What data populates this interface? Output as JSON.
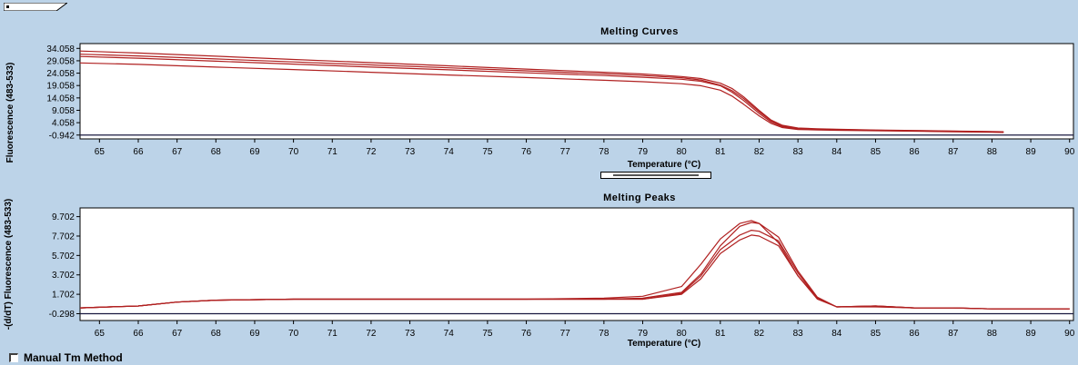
{
  "chart_data": [
    {
      "type": "line",
      "title": "Melting Curves",
      "xlabel": "Temperature (°C)",
      "ylabel": "Fluorescence (483-533)",
      "xlim": [
        64.5,
        90.1
      ],
      "ylim": [
        -2.5,
        36
      ],
      "xticks": [
        "65",
        "66",
        "67",
        "68",
        "69",
        "70",
        "71",
        "72",
        "73",
        "74",
        "75",
        "76",
        "77",
        "78",
        "79",
        "80",
        "81",
        "82",
        "83",
        "84",
        "85",
        "86",
        "87",
        "88",
        "89",
        "90"
      ],
      "yticks": [
        "34.058",
        "29.058",
        "24.058",
        "19.058",
        "14.058",
        "9.058",
        "4.058",
        "-0.942"
      ],
      "ytick_values": [
        34.058,
        29.058,
        24.058,
        19.058,
        14.058,
        9.058,
        4.058,
        -0.942
      ],
      "baseline": -0.942,
      "line_color": "#b02020",
      "baseline_color": "#1a1a40",
      "series": [
        {
          "x": [
            64.5,
            66,
            68,
            70,
            72,
            74,
            76,
            78,
            79,
            80,
            80.5,
            81,
            81.3,
            81.6,
            82,
            82.3,
            82.6,
            83,
            83.5,
            84,
            85,
            86,
            87,
            88,
            88.3
          ],
          "y": [
            33.0,
            32.2,
            30.9,
            29.6,
            28.3,
            27.0,
            25.7,
            24.4,
            23.7,
            22.7,
            21.9,
            20.0,
            17.9,
            14.5,
            9.0,
            5.2,
            3.0,
            1.9,
            1.6,
            1.4,
            1.1,
            0.9,
            0.7,
            0.5,
            0.4
          ]
        },
        {
          "x": [
            64.5,
            66,
            68,
            70,
            72,
            74,
            76,
            78,
            79,
            80,
            80.5,
            81,
            81.3,
            81.6,
            82,
            82.3,
            82.6,
            83,
            83.5,
            84,
            85,
            86,
            87,
            88,
            88.3
          ],
          "y": [
            31.7,
            31.0,
            29.8,
            28.6,
            27.4,
            26.2,
            25.0,
            23.8,
            23.1,
            22.2,
            21.3,
            19.2,
            17.0,
            13.8,
            8.5,
            4.9,
            2.8,
            1.7,
            1.4,
            1.3,
            1.0,
            0.8,
            0.6,
            0.4,
            0.3
          ]
        },
        {
          "x": [
            64.5,
            66,
            68,
            70,
            72,
            74,
            76,
            78,
            79,
            80,
            80.5,
            81,
            81.3,
            81.6,
            82,
            82.3,
            82.6,
            83,
            83.5,
            84,
            85,
            86,
            87,
            88,
            88.3
          ],
          "y": [
            30.8,
            30.1,
            28.9,
            27.7,
            26.5,
            25.4,
            24.2,
            23.1,
            22.4,
            21.6,
            20.8,
            19.0,
            16.4,
            13.0,
            7.8,
            4.4,
            2.5,
            1.5,
            1.3,
            1.2,
            0.9,
            0.7,
            0.5,
            0.3,
            0.2
          ]
        },
        {
          "x": [
            64.5,
            66,
            68,
            70,
            72,
            74,
            76,
            78,
            79,
            80,
            80.5,
            81,
            81.3,
            81.6,
            82,
            82.3,
            82.6,
            83,
            83.5,
            84,
            85,
            86,
            87,
            88,
            88.3
          ],
          "y": [
            28.2,
            27.6,
            26.5,
            25.5,
            24.4,
            23.3,
            22.3,
            21.2,
            20.6,
            19.8,
            19.0,
            17.2,
            14.8,
            11.5,
            6.8,
            3.8,
            2.1,
            1.3,
            1.1,
            1.0,
            0.8,
            0.6,
            0.4,
            0.2,
            0.1
          ]
        }
      ]
    },
    {
      "type": "line",
      "title": "Melting Peaks",
      "xlabel": "Temperature (°C)",
      "ylabel": "-(d/dT) Fluorescence (483-533)",
      "xlim": [
        64.5,
        90.1
      ],
      "ylim": [
        -1.0,
        10.6
      ],
      "xticks": [
        "65",
        "66",
        "67",
        "68",
        "69",
        "70",
        "71",
        "72",
        "73",
        "74",
        "75",
        "76",
        "77",
        "78",
        "79",
        "80",
        "81",
        "82",
        "83",
        "84",
        "85",
        "86",
        "87",
        "88",
        "89",
        "90"
      ],
      "yticks": [
        "9.702",
        "7.702",
        "5.702",
        "3.702",
        "1.702",
        "-0.298"
      ],
      "ytick_values": [
        9.702,
        7.702,
        5.702,
        3.702,
        1.702,
        -0.298
      ],
      "baseline": -0.298,
      "line_color": "#b02020",
      "baseline_color": "#1a1a40",
      "series": [
        {
          "x": [
            64.5,
            66,
            67,
            68,
            70,
            72,
            74,
            76,
            78,
            79,
            80,
            80.5,
            81,
            81.5,
            81.8,
            82,
            82.5,
            83,
            83.5,
            84,
            85,
            86,
            87,
            88,
            89,
            90
          ],
          "y": [
            0.3,
            0.5,
            0.9,
            1.1,
            1.2,
            1.2,
            1.2,
            1.2,
            1.3,
            1.5,
            2.5,
            4.8,
            7.4,
            9.0,
            9.3,
            9.0,
            7.0,
            3.6,
            1.3,
            0.4,
            0.5,
            0.3,
            0.3,
            0.2,
            0.2,
            0.2
          ]
        },
        {
          "x": [
            64.5,
            66,
            67,
            68,
            70,
            72,
            74,
            76,
            78,
            79,
            80,
            80.5,
            81,
            81.5,
            81.8,
            82,
            82.5,
            83,
            83.5,
            84,
            85,
            86,
            87,
            88,
            89,
            90
          ],
          "y": [
            0.3,
            0.5,
            0.9,
            1.1,
            1.2,
            1.2,
            1.2,
            1.2,
            1.2,
            1.3,
            1.9,
            3.8,
            6.7,
            8.7,
            9.1,
            9.0,
            7.6,
            4.1,
            1.4,
            0.4,
            0.5,
            0.3,
            0.3,
            0.2,
            0.2,
            0.2
          ]
        },
        {
          "x": [
            64.5,
            66,
            67,
            68,
            70,
            72,
            74,
            76,
            78,
            79,
            80,
            80.5,
            81,
            81.5,
            81.8,
            82,
            82.5,
            83,
            83.5,
            84,
            85,
            86,
            87,
            88,
            89,
            90
          ],
          "y": [
            0.3,
            0.5,
            0.9,
            1.1,
            1.2,
            1.2,
            1.2,
            1.2,
            1.2,
            1.2,
            1.8,
            3.6,
            6.3,
            7.8,
            8.3,
            8.2,
            7.2,
            3.9,
            1.3,
            0.4,
            0.5,
            0.3,
            0.3,
            0.2,
            0.2,
            0.2
          ]
        },
        {
          "x": [
            64.5,
            66,
            67,
            68,
            70,
            72,
            74,
            76,
            78,
            79,
            80,
            80.5,
            81,
            81.5,
            81.8,
            82,
            82.5,
            83,
            83.5,
            84,
            85,
            86,
            87,
            88,
            89,
            90
          ],
          "y": [
            0.3,
            0.5,
            0.9,
            1.1,
            1.2,
            1.2,
            1.2,
            1.2,
            1.2,
            1.2,
            1.7,
            3.3,
            5.9,
            7.3,
            7.8,
            7.7,
            6.7,
            3.6,
            1.2,
            0.4,
            0.4,
            0.3,
            0.3,
            0.2,
            0.2,
            0.2
          ]
        }
      ]
    }
  ],
  "footer": {
    "manual_tm_label": "Manual Tm Method",
    "manual_tm_checked": false
  }
}
